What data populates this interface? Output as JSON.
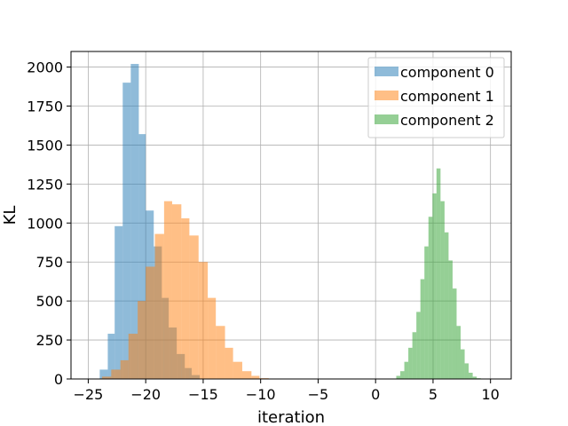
{
  "chart_data": {
    "type": "histogram",
    "xlabel": "iteration",
    "ylabel": "KL",
    "xlim": [
      -26.5,
      11.8
    ],
    "ylim": [
      0,
      2100
    ],
    "xticks": [
      -25,
      -20,
      -15,
      -10,
      -5,
      0,
      5,
      10
    ],
    "yticks": [
      0,
      250,
      500,
      750,
      1000,
      1250,
      1500,
      1750,
      2000
    ],
    "grid": true,
    "legend_position": "top-right",
    "series": [
      {
        "name": "component 0",
        "color": "#1f77b4",
        "opacity": 0.5,
        "bin_edges": [
          -24.0,
          -23.3,
          -22.7,
          -22.0,
          -21.3,
          -20.6,
          -20.0,
          -19.3,
          -18.6,
          -18.0,
          -17.3,
          -16.6,
          -16.0,
          -15.3
        ],
        "counts": [
          60,
          290,
          980,
          1900,
          2020,
          1570,
          1080,
          850,
          520,
          330,
          160,
          70,
          25
        ]
      },
      {
        "name": "component 1",
        "color": "#ff7f0e",
        "opacity": 0.5,
        "bin_edges": [
          -23.8,
          -23.0,
          -22.2,
          -21.5,
          -20.7,
          -20.0,
          -19.2,
          -18.4,
          -17.7,
          -16.9,
          -16.2,
          -15.4,
          -14.6,
          -13.9,
          -13.1,
          -12.4,
          -11.6,
          -10.8,
          -10.1,
          -9.3
        ],
        "counts": [
          15,
          60,
          120,
          290,
          500,
          720,
          930,
          1140,
          1120,
          1030,
          920,
          750,
          520,
          340,
          200,
          110,
          50,
          20,
          5
        ]
      },
      {
        "name": "component 2",
        "color": "#2ca02c",
        "opacity": 0.5,
        "bin_edges": [
          1.8,
          2.15,
          2.5,
          2.85,
          3.2,
          3.55,
          3.9,
          4.25,
          4.6,
          4.95,
          5.3,
          5.65,
          6.0,
          6.35,
          6.7,
          7.05,
          7.4,
          7.75,
          8.1,
          8.45,
          8.8,
          9.15
        ],
        "counts": [
          20,
          50,
          110,
          200,
          300,
          430,
          640,
          850,
          1040,
          1190,
          1350,
          1140,
          940,
          760,
          580,
          340,
          190,
          100,
          40,
          15,
          5
        ]
      }
    ]
  }
}
